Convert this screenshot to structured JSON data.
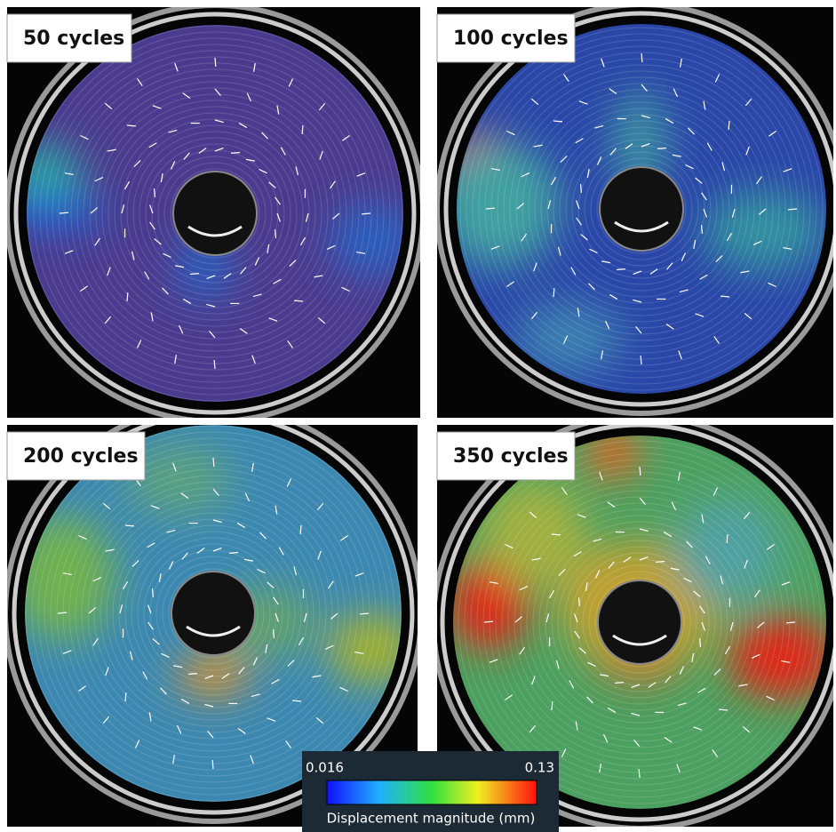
{
  "panels": [
    {
      "label": "50 cycles"
    },
    {
      "label": "100 cycles"
    },
    {
      "label": "200 cycles"
    },
    {
      "label": "350 cycles"
    }
  ],
  "colorbar": {
    "min": 0.016,
    "max": 0.13,
    "label": "Displacement magnitude (mm)"
  }
}
